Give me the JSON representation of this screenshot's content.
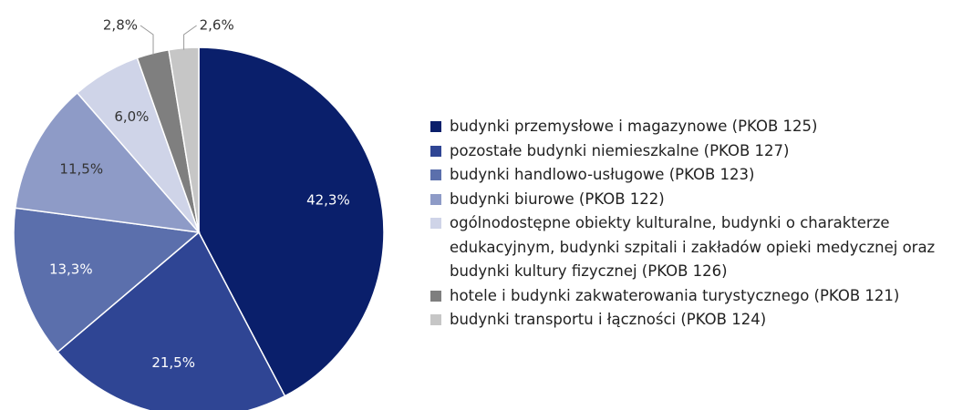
{
  "chart_data": {
    "type": "pie",
    "categories": [
      "budynki przemysłowe i magazynowe (PKOB 125)",
      "pozostałe budynki niemieszkalne (PKOB 127)",
      "budynki handlowo-usługowe (PKOB 123)",
      "budynki biurowe (PKOB 122)",
      "ogólnodostępne obiekty kulturalne, budynki o charakterze edukacyjnym, budynki szpitali i zakładów opieki medycznej oraz budynki kultury fizycznej (PKOB 126)",
      "hotele i budynki zakwaterowania turystycznego (PKOB 121)",
      "budynki transportu i łączności (PKOB 124)"
    ],
    "values": [
      42.3,
      21.5,
      13.3,
      11.5,
      6.0,
      2.8,
      2.6
    ],
    "value_labels": [
      "42,3%",
      "21,5%",
      "13,3%",
      "11,5%",
      "6,0%",
      "2,8%",
      "2,6%"
    ],
    "colors": [
      "#0a1f6b",
      "#2f4594",
      "#5b6fac",
      "#8e9bc7",
      "#cfd4e8",
      "#7f7f7f",
      "#c6c6c6"
    ],
    "legend": "right"
  }
}
